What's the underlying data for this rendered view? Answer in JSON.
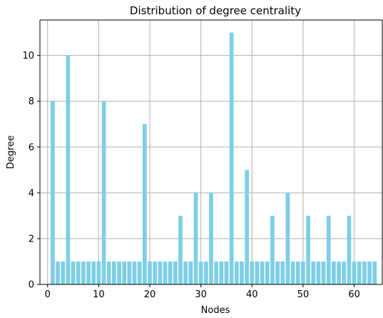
{
  "chart_data": {
    "type": "bar",
    "title": "Distribution of degree centrality",
    "xlabel": "Nodes",
    "ylabel": "Degree",
    "x": [
      1,
      2,
      3,
      4,
      5,
      6,
      7,
      8,
      9,
      10,
      11,
      12,
      13,
      14,
      15,
      16,
      17,
      18,
      19,
      20,
      21,
      22,
      23,
      24,
      25,
      26,
      27,
      28,
      29,
      30,
      31,
      32,
      33,
      34,
      35,
      36,
      37,
      38,
      39,
      40,
      41,
      42,
      43,
      44,
      45,
      46,
      47,
      48,
      49,
      50,
      51,
      52,
      53,
      54,
      55,
      56,
      57,
      58,
      59,
      60,
      61,
      62,
      63,
      64
    ],
    "values": [
      8,
      1,
      1,
      10,
      1,
      1,
      1,
      1,
      1,
      1,
      8,
      1,
      1,
      1,
      1,
      1,
      1,
      1,
      7,
      1,
      1,
      1,
      1,
      1,
      1,
      3,
      1,
      1,
      4,
      1,
      1,
      4,
      1,
      1,
      1,
      11,
      1,
      1,
      5,
      1,
      1,
      1,
      1,
      3,
      1,
      1,
      4,
      1,
      1,
      1,
      3,
      1,
      1,
      1,
      3,
      1,
      1,
      1,
      3,
      1,
      1,
      1,
      1,
      1
    ],
    "xlim": [
      -1.5,
      65.5
    ],
    "ylim": [
      0,
      11.55
    ],
    "xticks": [
      0,
      10,
      20,
      30,
      40,
      50,
      60
    ],
    "yticks": [
      0,
      2,
      4,
      6,
      8,
      10
    ],
    "grid": true,
    "bar_color": "#7ecfe6",
    "grid_color": "#b0b0b0"
  }
}
